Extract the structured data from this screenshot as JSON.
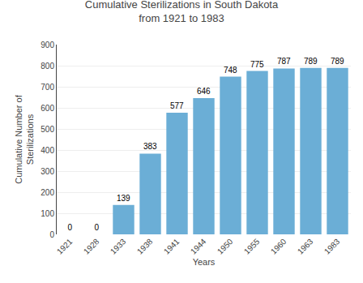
{
  "chart_data": {
    "type": "bar",
    "title": "Cumulative Sterilizations in South Dakota\nfrom 1921 to 1983",
    "xlabel": "Years",
    "ylabel": "Cumulative Number of\nSterilizations",
    "categories": [
      "1921",
      "1928",
      "1933",
      "1938",
      "1941",
      "1944",
      "1950",
      "1955",
      "1960",
      "1963",
      "1983"
    ],
    "values": [
      0,
      0,
      139,
      383,
      577,
      646,
      748,
      775,
      787,
      789,
      789
    ],
    "color": "#6baed6",
    "ylim": [
      0,
      900
    ],
    "yticks": [
      0,
      100,
      200,
      300,
      400,
      500,
      600,
      700,
      800,
      900
    ],
    "grid": true,
    "data_labels": true
  }
}
